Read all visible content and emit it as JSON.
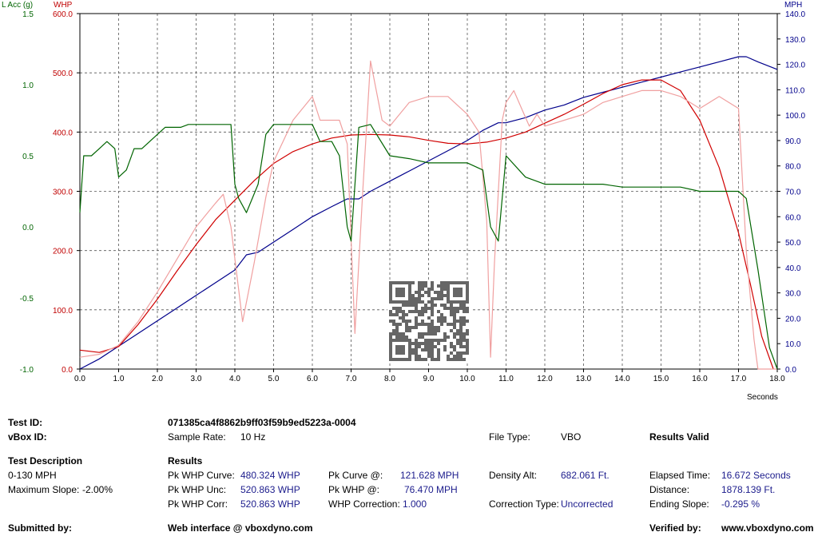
{
  "chart_data": {
    "type": "line",
    "x_axis": {
      "label": "Seconds",
      "range": [
        0,
        18
      ],
      "ticks": [
        "0.0",
        "1.0",
        "2.0",
        "3.0",
        "4.0",
        "5.0",
        "6.0",
        "7.0",
        "8.0",
        "9.0",
        "10.0",
        "11.0",
        "12.0",
        "13.0",
        "14.0",
        "15.0",
        "16.0",
        "17.0",
        "18.0"
      ]
    },
    "y_axes": {
      "acc": {
        "label": "L Acc (g)",
        "range": [
          -1.0,
          1.5
        ],
        "color": "#006400",
        "ticks": [
          "1.5",
          "1.0",
          "0.5",
          "0.0",
          "-0.5",
          "-1.0"
        ]
      },
      "whp": {
        "label": "WHP",
        "range": [
          0,
          600
        ],
        "color": "#c00000",
        "ticks": [
          "600.0",
          "500.0",
          "400.0",
          "300.0",
          "200.0",
          "100.0",
          "0.0"
        ]
      },
      "mph": {
        "label": "MPH",
        "range": [
          0,
          140
        ],
        "color": "#00008b",
        "ticks": [
          "140.0",
          "130.0",
          "120.0",
          "110.0",
          "100.0",
          "90.0",
          "80.0",
          "70.0",
          "60.0",
          "50.0",
          "40.0",
          "30.0",
          "20.0",
          "10.0",
          "0.0"
        ]
      }
    },
    "grid": true,
    "series": [
      {
        "axis": "mph",
        "color": "#00008b",
        "x": [
          0,
          0.5,
          1,
          1.5,
          2,
          2.5,
          3,
          3.5,
          4,
          4.3,
          4.6,
          5,
          5.5,
          6,
          6.5,
          6.9,
          7.2,
          7.5,
          8,
          8.5,
          9,
          9.5,
          10,
          10.4,
          10.8,
          11,
          11.5,
          12,
          12.5,
          13,
          13.5,
          14,
          14.5,
          15,
          15.5,
          16,
          16.5,
          17,
          17.2,
          17.5,
          18
        ],
        "y": [
          0,
          4,
          9,
          14,
          19,
          24,
          29,
          34,
          39,
          45,
          46,
          50,
          55,
          60,
          64,
          67,
          67,
          70,
          74,
          78,
          82,
          86,
          90,
          94,
          97,
          97,
          99,
          102,
          104,
          107,
          109,
          111,
          113,
          115,
          117,
          119,
          121,
          123,
          123,
          121,
          118
        ]
      },
      {
        "axis": "whp",
        "color": "#d00000",
        "x": [
          0,
          0.5,
          1,
          1.5,
          2,
          2.5,
          3,
          3.5,
          4,
          4.5,
          5,
          5.5,
          6,
          6.5,
          7,
          7.5,
          8,
          8.5,
          9,
          9.5,
          10,
          10.5,
          11,
          11.5,
          12,
          12.5,
          13,
          13.5,
          14,
          14.5,
          15,
          15.5,
          16,
          16.5,
          17,
          17.3,
          17.6,
          17.9
        ],
        "y": [
          32,
          28,
          38,
          75,
          118,
          165,
          210,
          252,
          285,
          318,
          347,
          367,
          380,
          390,
          395,
          396,
          395,
          392,
          386,
          381,
          380,
          383,
          390,
          400,
          415,
          430,
          447,
          465,
          480,
          488,
          488,
          470,
          420,
          340,
          230,
          145,
          55,
          0
        ]
      },
      {
        "axis": "whp",
        "color": "#f0a0a0",
        "x": [
          0,
          0.5,
          1,
          1.5,
          2,
          2.5,
          3,
          3.5,
          3.7,
          3.9,
          4.2,
          4.5,
          4.8,
          5,
          5.5,
          6,
          6.2,
          6.5,
          6.7,
          6.9,
          7.1,
          7.3,
          7.5,
          7.8,
          8,
          8.5,
          9,
          9.5,
          10,
          10.3,
          10.5,
          10.6,
          10.7,
          10.9,
          11,
          11.2,
          11.4,
          11.6,
          11.8,
          12,
          12.5,
          13,
          13.5,
          14,
          14.5,
          15,
          15.5,
          16,
          16.5,
          17,
          17.2,
          17.4,
          17.5,
          18
        ],
        "y": [
          20,
          25,
          40,
          80,
          130,
          185,
          240,
          280,
          295,
          240,
          80,
          180,
          290,
          350,
          420,
          460,
          420,
          420,
          420,
          380,
          60,
          300,
          520,
          420,
          410,
          450,
          460,
          460,
          430,
          400,
          250,
          20,
          180,
          420,
          450,
          470,
          440,
          410,
          430,
          410,
          420,
          430,
          450,
          460,
          470,
          470,
          460,
          440,
          460,
          440,
          200,
          50,
          0,
          0
        ]
      },
      {
        "axis": "acc",
        "color": "#006400",
        "x": [
          0,
          0.1,
          0.3,
          0.5,
          0.7,
          0.9,
          1,
          1.2,
          1.4,
          1.6,
          1.8,
          2,
          2.2,
          2.4,
          2.6,
          2.8,
          3,
          3.5,
          3.9,
          4,
          4.1,
          4.3,
          4.6,
          4.8,
          5,
          5.5,
          6,
          6.2,
          6.5,
          6.7,
          6.9,
          7,
          7.2,
          7.5,
          8,
          8.5,
          9,
          9.5,
          10,
          10.4,
          10.6,
          10.8,
          11,
          11.5,
          12,
          12.5,
          13,
          13.5,
          14,
          14.5,
          15,
          15.5,
          16,
          16.5,
          17,
          17.2,
          17.5,
          17.8,
          18
        ],
        "y": [
          0.1,
          0.5,
          0.5,
          0.55,
          0.6,
          0.55,
          0.35,
          0.4,
          0.55,
          0.55,
          0.6,
          0.65,
          0.7,
          0.7,
          0.7,
          0.72,
          0.72,
          0.72,
          0.72,
          0.3,
          0.2,
          0.1,
          0.3,
          0.65,
          0.72,
          0.72,
          0.72,
          0.6,
          0.6,
          0.5,
          0.0,
          -0.1,
          0.7,
          0.72,
          0.5,
          0.48,
          0.45,
          0.45,
          0.45,
          0.4,
          0.0,
          -0.1,
          0.5,
          0.35,
          0.3,
          0.3,
          0.3,
          0.3,
          0.28,
          0.28,
          0.28,
          0.28,
          0.25,
          0.25,
          0.25,
          0.2,
          -0.3,
          -0.85,
          -1.0
        ]
      }
    ]
  },
  "qr": {
    "icon": "qr-code-icon"
  },
  "info": {
    "test_id_label": "Test ID:",
    "test_id_value": "071385ca4f8862b9ff03f59b9ed5223a-0004",
    "vbox_id_label": "vBox ID:",
    "sample_rate_label": "Sample Rate:",
    "sample_rate_value": "10 Hz",
    "file_type_label": "File Type:",
    "file_type_value": "VBO",
    "results_valid": "Results Valid",
    "test_description_label": "Test Description",
    "test_description_value": "0-130 MPH",
    "max_slope_label": "Maximum Slope:",
    "max_slope_value": "-2.00%",
    "results_label": "Results",
    "pk_whp_curve_label": "Pk WHP Curve:",
    "pk_whp_curve_value": "480.324 WHP",
    "pk_whp_unc_label": "Pk WHP Unc:",
    "pk_whp_unc_value": "520.863 WHP",
    "pk_whp_corr_label": "Pk WHP Corr:",
    "pk_whp_corr_value": "520.863 WHP",
    "pk_curve_at_label": "Pk Curve @:",
    "pk_curve_at_value": "121.628 MPH",
    "pk_whp_at_label": "Pk WHP @:",
    "pk_whp_at_value": "76.470 MPH",
    "whp_correction_label": "WHP Correction:",
    "whp_correction_value": "1.000",
    "density_alt_label": "Density Alt:",
    "density_alt_value": "682.061 Ft.",
    "correction_type_label": "Correction Type:",
    "correction_type_value": "Uncorrected",
    "elapsed_time_label": "Elapsed Time:",
    "elapsed_time_value": "16.672 Seconds",
    "distance_label": "Distance:",
    "distance_value": "1878.139 Ft.",
    "ending_slope_label": "Ending Slope:",
    "ending_slope_value": "-0.295 %",
    "submitted_by_label": "Submitted by:",
    "web_interface": "Web interface @ vboxdyno.com",
    "verified_by_label": "Verified by:",
    "verified_by_value": "www.vboxdyno.com"
  }
}
